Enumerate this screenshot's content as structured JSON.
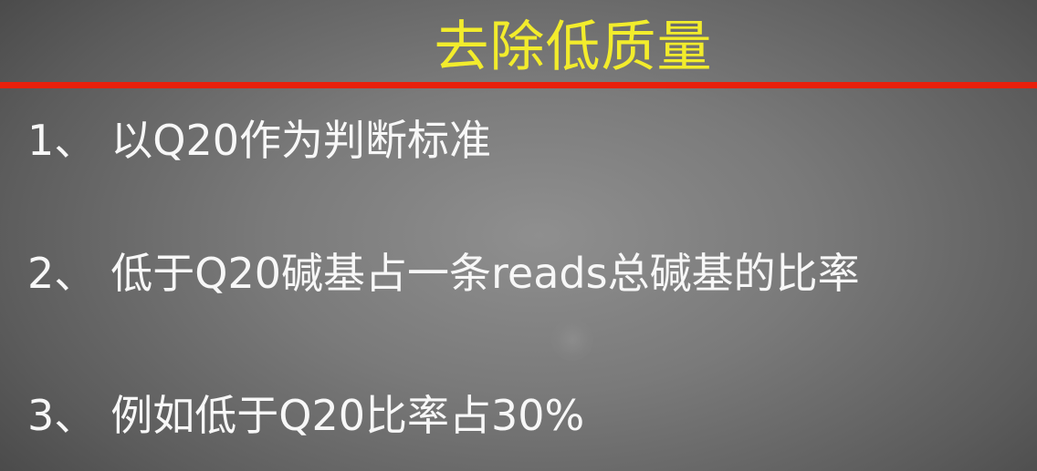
{
  "slide": {
    "title": "去除低质量",
    "bullets": [
      {
        "number": "1、",
        "text": "以Q20作为判断标准"
      },
      {
        "number": "2、",
        "text": "低于Q20碱基占一条reads总碱基的比率"
      },
      {
        "number": "3、",
        "text": "例如低于Q20比率占30%"
      }
    ]
  },
  "colors": {
    "title": "#f2ec2c",
    "rule": "#e8200c",
    "text": "#f7f7f7",
    "background": "#7a7a7a"
  }
}
